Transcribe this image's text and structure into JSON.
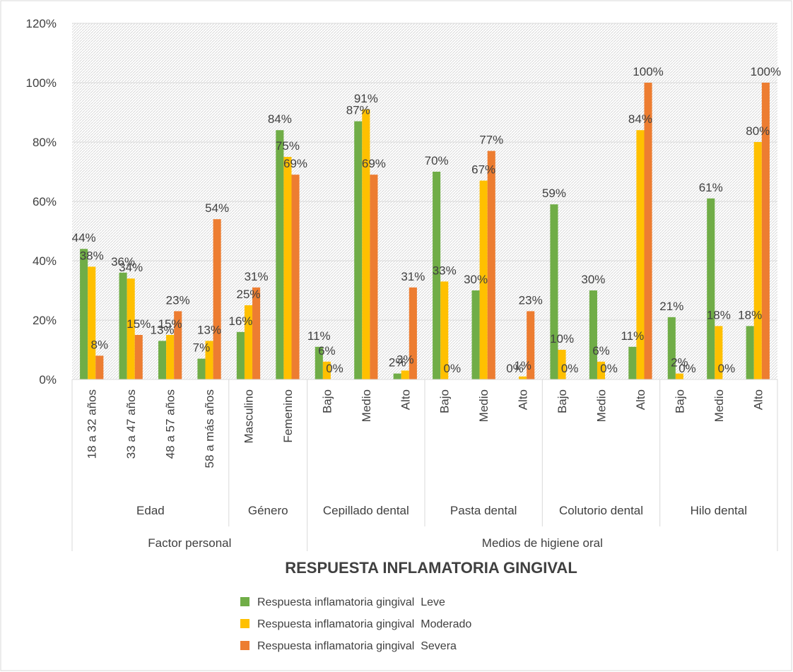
{
  "chart_data": {
    "type": "bar",
    "title": "RESPUESTA INFLAMATORIA GINGIVAL",
    "ylim": [
      0,
      120
    ],
    "y_ticks": [
      "0%",
      "20%",
      "40%",
      "60%",
      "80%",
      "100%",
      "120%"
    ],
    "grid": true,
    "legend_position": "bottom",
    "top_groups": [
      {
        "label": "Factor personal",
        "span": [
          0,
          6
        ]
      },
      {
        "label": "Medios de higiene oral",
        "span": [
          6,
          18
        ]
      }
    ],
    "groups": [
      {
        "label": "Edad",
        "span": [
          0,
          4
        ]
      },
      {
        "label": "Género",
        "span": [
          4,
          6
        ]
      },
      {
        "label": "Cepillado dental",
        "span": [
          6,
          9
        ]
      },
      {
        "label": "Pasta dental",
        "span": [
          9,
          12
        ]
      },
      {
        "label": "Colutorio dental",
        "span": [
          12,
          15
        ]
      },
      {
        "label": "Hilo dental",
        "span": [
          15,
          18
        ]
      }
    ],
    "categories": [
      "18 a 32 años",
      "33 a 47 años",
      "48 a 57 años",
      "58 a más años",
      "Masculino",
      "Femenino",
      "Bajo",
      "Medio",
      "Alto",
      "Bajo",
      "Medio",
      "Alto",
      "Bajo",
      "Medio",
      "Alto",
      "Bajo",
      "Medio",
      "Alto"
    ],
    "series": [
      {
        "name": "Respuesta inflamatoria gingival  Leve",
        "color": "#70AD47",
        "values": [
          44,
          36,
          13,
          7,
          16,
          84,
          11,
          87,
          2,
          70,
          30,
          0,
          59,
          30,
          11,
          21,
          61,
          18
        ]
      },
      {
        "name": "Respuesta inflamatoria gingival  Moderado",
        "color": "#FFC000",
        "values": [
          38,
          34,
          15,
          13,
          25,
          75,
          6,
          91,
          3,
          33,
          67,
          1,
          10,
          6,
          84,
          2,
          18,
          80
        ]
      },
      {
        "name": "Respuesta inflamatoria gingival  Severa",
        "color": "#ED7D31",
        "values": [
          8,
          15,
          23,
          54,
          31,
          69,
          0,
          69,
          31,
          0,
          77,
          23,
          0,
          0,
          100,
          0,
          0,
          100
        ]
      }
    ],
    "value_suffix": "%"
  }
}
